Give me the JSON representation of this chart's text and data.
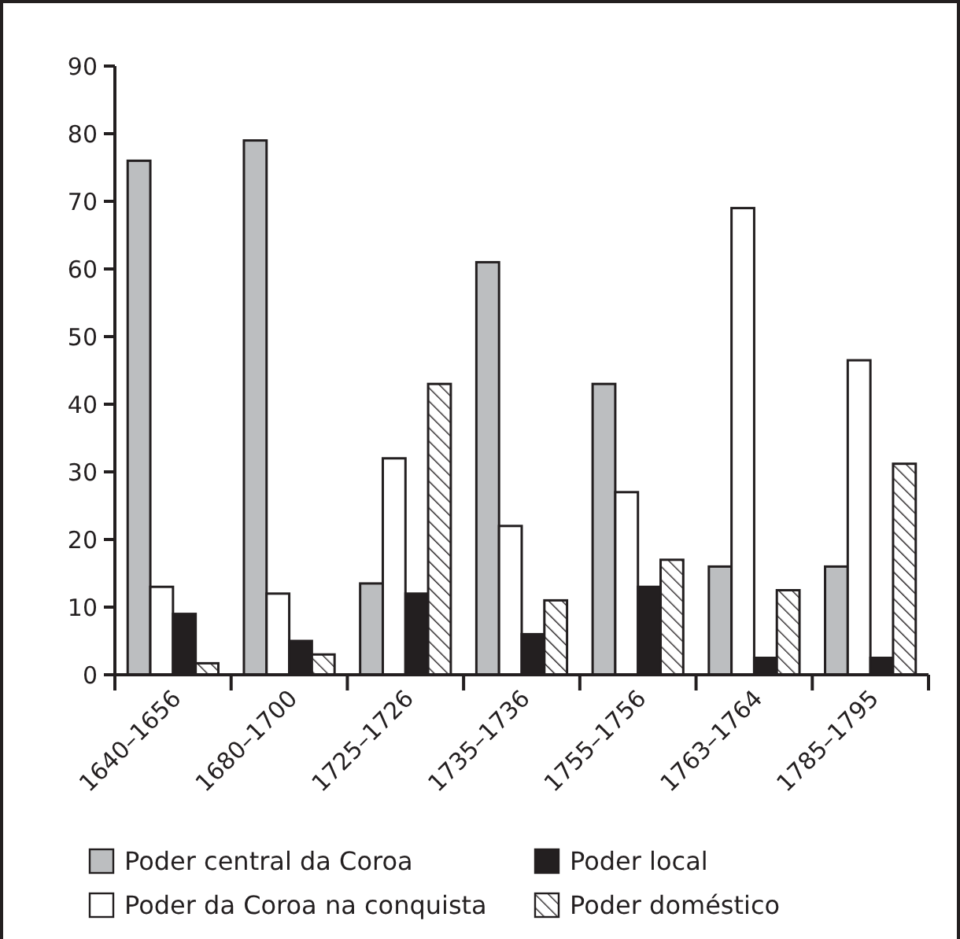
{
  "chart_data": {
    "type": "bar",
    "categories": [
      "1640–1656",
      "1680–1700",
      "1725–1726",
      "1735–1736",
      "1755–1756",
      "1763–1764",
      "1785–1795"
    ],
    "series": [
      {
        "name": "Poder central da Coroa",
        "color": "#bcbec0",
        "values": [
          76,
          79,
          13.5,
          61,
          43,
          16,
          16
        ]
      },
      {
        "name": "Poder da Coroa na conquista",
        "color": "#ffffff",
        "values": [
          13,
          12,
          32,
          22,
          27,
          69,
          46.5
        ]
      },
      {
        "name": "Poder local",
        "color": "#231f20",
        "values": [
          9,
          5,
          12,
          6,
          13,
          2.5,
          2.5
        ]
      },
      {
        "name": "Poder doméstico",
        "color": "#231f20",
        "values": [
          1.7,
          3,
          43,
          11,
          17,
          12.5,
          31.2
        ]
      }
    ],
    "ylim": [
      0,
      90
    ],
    "yticks": [
      0,
      10,
      20,
      30,
      40,
      50,
      60,
      70,
      80,
      90
    ],
    "legend": "bottom",
    "grid": false
  }
}
